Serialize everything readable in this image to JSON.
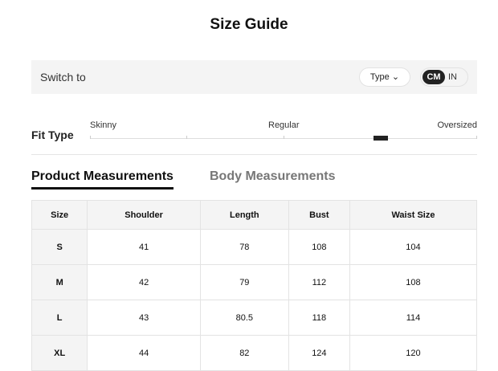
{
  "title": "Size Guide",
  "switch": {
    "label": "Switch to",
    "type_label": "Type",
    "units": [
      "CM",
      "IN"
    ],
    "selected_unit": "CM"
  },
  "fit": {
    "label": "Fit Type",
    "scale": [
      "Skinny",
      "Regular",
      "Oversized"
    ],
    "position": 0.75
  },
  "tabs": [
    {
      "label": "Product Measurements",
      "active": true
    },
    {
      "label": "Body Measurements",
      "active": false
    }
  ],
  "table": {
    "headers": [
      "Size",
      "Shoulder",
      "Length",
      "Bust",
      "Waist Size"
    ],
    "rows": [
      [
        "S",
        "41",
        "78",
        "108",
        "104"
      ],
      [
        "M",
        "42",
        "79",
        "112",
        "108"
      ],
      [
        "L",
        "43",
        "80.5",
        "118",
        "114"
      ],
      [
        "XL",
        "44",
        "82",
        "124",
        "120"
      ]
    ]
  }
}
